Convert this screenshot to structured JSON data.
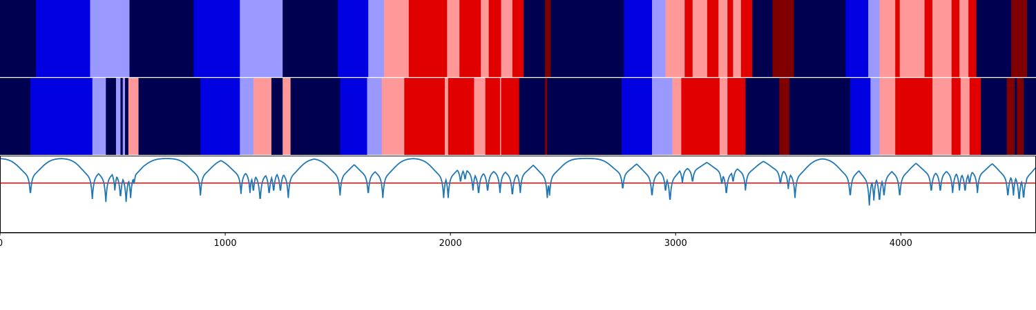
{
  "chart_data": [
    {
      "type": "heatmap",
      "xlim": [
        0,
        4600
      ],
      "palette": {
        "0": "#000050",
        "1": "#0000e0",
        "2": "#9999ff",
        "3": "#ff9999",
        "4": "#e00000",
        "5": "#800000"
      },
      "segments": [
        [
          0,
          160,
          0
        ],
        [
          160,
          400,
          1
        ],
        [
          400,
          575,
          2
        ],
        [
          575,
          860,
          0
        ],
        [
          860,
          1065,
          1
        ],
        [
          1065,
          1255,
          2
        ],
        [
          1255,
          1500,
          0
        ],
        [
          1500,
          1635,
          1
        ],
        [
          1635,
          1705,
          2
        ],
        [
          1705,
          1815,
          3
        ],
        [
          1815,
          1985,
          4
        ],
        [
          1985,
          2040,
          3
        ],
        [
          2040,
          2135,
          4
        ],
        [
          2135,
          2170,
          3
        ],
        [
          2170,
          2225,
          4
        ],
        [
          2225,
          2275,
          3
        ],
        [
          2275,
          2325,
          4
        ],
        [
          2325,
          2420,
          0
        ],
        [
          2420,
          2445,
          5
        ],
        [
          2445,
          2770,
          0
        ],
        [
          2770,
          2895,
          1
        ],
        [
          2895,
          2955,
          2
        ],
        [
          2955,
          3040,
          3
        ],
        [
          3040,
          3075,
          4
        ],
        [
          3075,
          3140,
          3
        ],
        [
          3140,
          3190,
          4
        ],
        [
          3190,
          3230,
          3
        ],
        [
          3230,
          3255,
          4
        ],
        [
          3255,
          3290,
          3
        ],
        [
          3290,
          3340,
          4
        ],
        [
          3340,
          3430,
          0
        ],
        [
          3430,
          3525,
          5
        ],
        [
          3525,
          3755,
          0
        ],
        [
          3755,
          3855,
          1
        ],
        [
          3855,
          3905,
          2
        ],
        [
          3905,
          3975,
          3
        ],
        [
          3975,
          3995,
          4
        ],
        [
          3995,
          4105,
          3
        ],
        [
          4105,
          4140,
          4
        ],
        [
          4140,
          4225,
          3
        ],
        [
          4225,
          4260,
          4
        ],
        [
          4260,
          4300,
          3
        ],
        [
          4300,
          4335,
          4
        ],
        [
          4335,
          4490,
          0
        ],
        [
          4490,
          4560,
          5
        ],
        [
          4560,
          4600,
          0
        ]
      ]
    },
    {
      "type": "heatmap",
      "xlim": [
        0,
        4600
      ],
      "segments": [
        [
          0,
          135,
          0
        ],
        [
          135,
          410,
          1
        ],
        [
          410,
          470,
          2
        ],
        [
          470,
          515,
          0
        ],
        [
          515,
          535,
          2
        ],
        [
          535,
          545,
          0
        ],
        [
          545,
          555,
          2
        ],
        [
          555,
          570,
          0
        ],
        [
          570,
          615,
          3
        ],
        [
          615,
          890,
          0
        ],
        [
          890,
          1065,
          1
        ],
        [
          1065,
          1125,
          2
        ],
        [
          1125,
          1205,
          3
        ],
        [
          1205,
          1255,
          0
        ],
        [
          1255,
          1290,
          3
        ],
        [
          1290,
          1510,
          0
        ],
        [
          1510,
          1630,
          1
        ],
        [
          1630,
          1695,
          2
        ],
        [
          1695,
          1795,
          3
        ],
        [
          1795,
          1975,
          4
        ],
        [
          1975,
          1990,
          3
        ],
        [
          1990,
          2105,
          4
        ],
        [
          2105,
          2155,
          3
        ],
        [
          2155,
          2220,
          4
        ],
        [
          2220,
          2225,
          3
        ],
        [
          2225,
          2305,
          4
        ],
        [
          2305,
          2420,
          0
        ],
        [
          2420,
          2430,
          5
        ],
        [
          2430,
          2760,
          0
        ],
        [
          2760,
          2895,
          1
        ],
        [
          2895,
          2985,
          2
        ],
        [
          2985,
          3025,
          3
        ],
        [
          3025,
          3195,
          4
        ],
        [
          3195,
          3230,
          3
        ],
        [
          3230,
          3310,
          4
        ],
        [
          3310,
          3460,
          0
        ],
        [
          3460,
          3505,
          5
        ],
        [
          3505,
          3775,
          0
        ],
        [
          3775,
          3865,
          1
        ],
        [
          3865,
          3905,
          2
        ],
        [
          3905,
          3975,
          3
        ],
        [
          3975,
          4140,
          4
        ],
        [
          4140,
          4225,
          3
        ],
        [
          4225,
          4265,
          4
        ],
        [
          4265,
          4305,
          3
        ],
        [
          4305,
          4355,
          4
        ],
        [
          4355,
          4470,
          0
        ],
        [
          4470,
          4505,
          5
        ],
        [
          4505,
          4515,
          0
        ],
        [
          4515,
          4545,
          5
        ],
        [
          4545,
          4600,
          0
        ]
      ]
    },
    {
      "type": "line",
      "xlim": [
        0,
        4600
      ],
      "ylim": [
        -0.5,
        1.05
      ],
      "threshold": 0.5,
      "xticks": [
        0,
        1000,
        2000,
        3000,
        4000
      ],
      "xtick_labels": [
        "0",
        "1000",
        "2000",
        "3000",
        "4000"
      ],
      "series_color": "#1f77b4",
      "threshold_color": "#ff0000",
      "dips": [
        [
          135,
          0.25
        ],
        [
          410,
          0.18
        ],
        [
          470,
          0.12
        ],
        [
          510,
          0.35
        ],
        [
          535,
          0.18
        ],
        [
          560,
          0.12
        ],
        [
          580,
          0.2
        ],
        [
          595,
          0.45
        ],
        [
          890,
          0.25
        ],
        [
          1070,
          0.28
        ],
        [
          1110,
          0.3
        ],
        [
          1125,
          0.3
        ],
        [
          1155,
          0.12
        ],
        [
          1195,
          0.25
        ],
        [
          1215,
          0.3
        ],
        [
          1245,
          0.3
        ],
        [
          1280,
          0.2
        ],
        [
          1510,
          0.25
        ],
        [
          1635,
          0.25
        ],
        [
          1700,
          0.2
        ],
        [
          1970,
          0.2
        ],
        [
          1990,
          0.2
        ],
        [
          2045,
          0.5
        ],
        [
          2065,
          0.55
        ],
        [
          2100,
          0.35
        ],
        [
          2125,
          0.25
        ],
        [
          2165,
          0.3
        ],
        [
          2220,
          0.3
        ],
        [
          2275,
          0.22
        ],
        [
          2310,
          0.3
        ],
        [
          2430,
          0.2
        ],
        [
          2440,
          0.25
        ],
        [
          2765,
          0.35
        ],
        [
          2895,
          0.2
        ],
        [
          2955,
          0.3
        ],
        [
          2975,
          0.1
        ],
        [
          3030,
          0.5
        ],
        [
          3075,
          0.5
        ],
        [
          3205,
          0.45
        ],
        [
          3225,
          0.25
        ],
        [
          3255,
          0.5
        ],
        [
          3310,
          0.35
        ],
        [
          3465,
          0.45
        ],
        [
          3500,
          0.38
        ],
        [
          3530,
          0.2
        ],
        [
          3775,
          0.2
        ],
        [
          3860,
          0.05
        ],
        [
          3880,
          0.15
        ],
        [
          3905,
          0.1
        ],
        [
          3925,
          0.2
        ],
        [
          3995,
          0.2
        ],
        [
          4135,
          0.3
        ],
        [
          4175,
          0.3
        ],
        [
          4230,
          0.3
        ],
        [
          4260,
          0.35
        ],
        [
          4285,
          0.3
        ],
        [
          4305,
          0.45
        ],
        [
          4340,
          0.3
        ],
        [
          4475,
          0.2
        ],
        [
          4500,
          0.25
        ],
        [
          4525,
          0.12
        ],
        [
          4545,
          0.15
        ],
        [
          4555,
          0.45
        ],
        [
          4595,
          0.9
        ]
      ]
    }
  ]
}
